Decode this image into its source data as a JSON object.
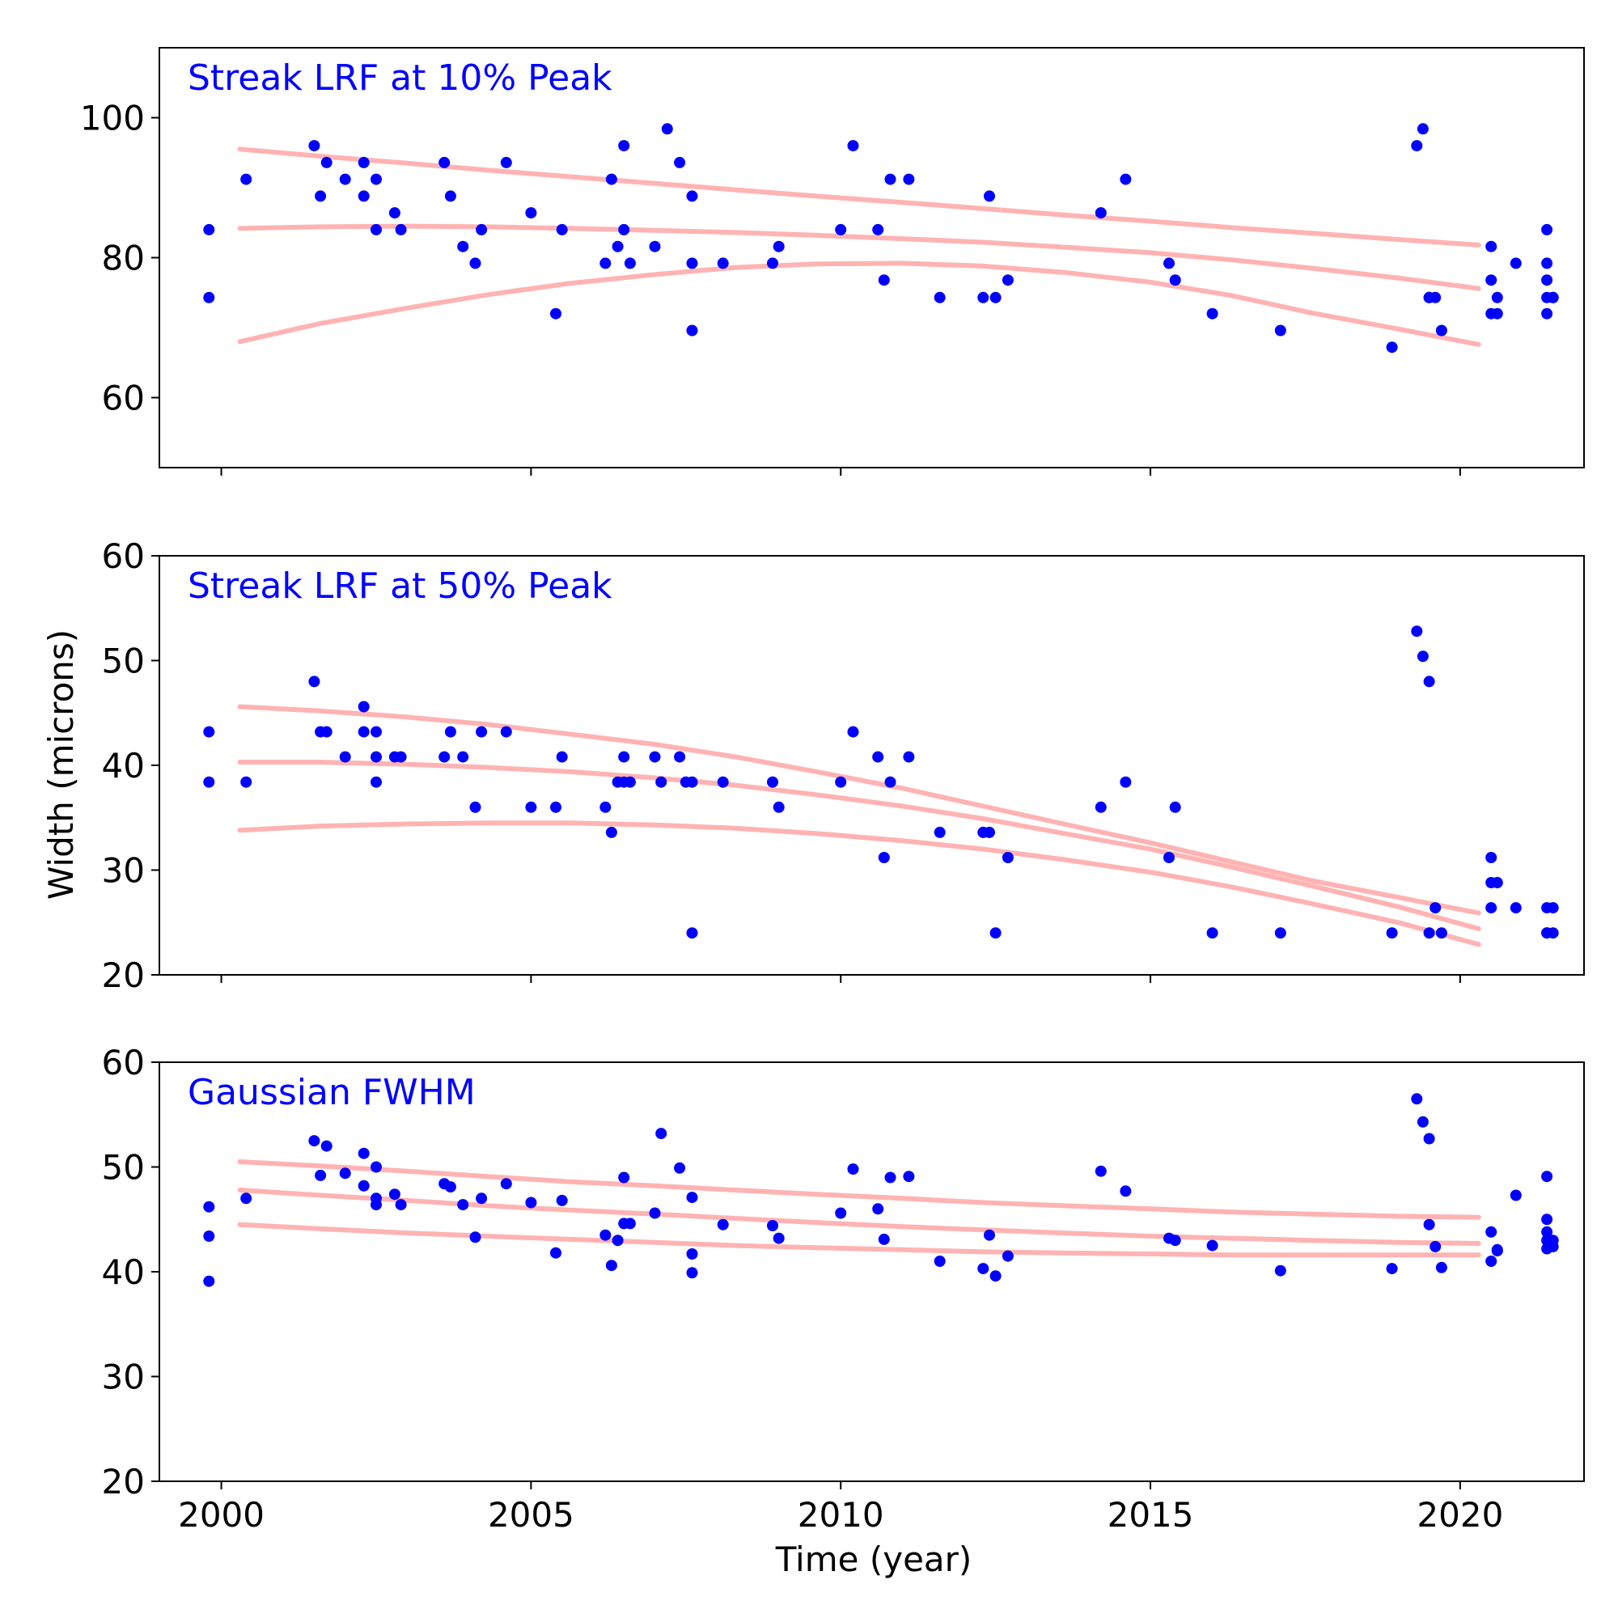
{
  "figure": {
    "ylabel": "Width (microns)",
    "xlabel": "Time (year)"
  },
  "colors": {
    "points": "#0000ff",
    "fit": "#ffb3b3",
    "title": "#0000ff",
    "axis": "#000000"
  },
  "chart_data": [
    {
      "type": "scatter",
      "title": "Streak LRF at 10% Peak",
      "xlim": [
        1999,
        2022
      ],
      "ylim": [
        50,
        110
      ],
      "xticks": [
        2000,
        2005,
        2010,
        2015,
        2020
      ],
      "yticks": [
        60,
        80,
        100
      ],
      "show_xtick_labels": false,
      "grid": false,
      "x": [
        1999.8,
        1999.8,
        2000.4,
        2001.5,
        2001.6,
        2001.7,
        2002.0,
        2002.3,
        2002.3,
        2002.5,
        2002.5,
        2002.8,
        2002.9,
        2003.6,
        2003.7,
        2003.9,
        2004.1,
        2004.2,
        2004.6,
        2005.0,
        2005.4,
        2005.5,
        2006.2,
        2006.3,
        2006.4,
        2006.5,
        2006.5,
        2006.6,
        2007.0,
        2007.2,
        2007.4,
        2007.6,
        2007.6,
        2007.6,
        2008.1,
        2008.9,
        2009.0,
        2010.0,
        2010.2,
        2010.6,
        2010.7,
        2010.8,
        2011.1,
        2011.6,
        2012.3,
        2012.4,
        2012.5,
        2012.7,
        2014.2,
        2014.6,
        2015.3,
        2015.4,
        2016.0,
        2017.1,
        2018.9,
        2019.3,
        2019.4,
        2019.5,
        2019.5,
        2019.6,
        2019.7,
        2020.5,
        2020.5,
        2020.5,
        2020.6,
        2020.6,
        2020.9,
        2021.4,
        2021.4,
        2021.4,
        2021.4,
        2021.4,
        2021.5,
        2021.5
      ],
      "y": [
        84,
        74.3,
        91.2,
        96,
        88.8,
        93.6,
        91.2,
        93.6,
        88.8,
        91.2,
        84,
        86.4,
        84,
        93.6,
        88.8,
        81.6,
        79.2,
        84,
        93.6,
        86.4,
        72,
        84,
        79.2,
        91.2,
        81.6,
        96,
        84,
        79.2,
        81.6,
        98.4,
        93.6,
        88.8,
        79.2,
        69.6,
        79.2,
        79.2,
        81.6,
        84,
        96,
        84,
        76.8,
        91.2,
        91.2,
        74.3,
        74.3,
        88.8,
        74.3,
        76.8,
        86.4,
        91.2,
        79.2,
        76.8,
        72,
        69.6,
        67.2,
        96,
        98.4,
        74.3,
        74.3,
        74.3,
        69.6,
        72,
        81.6,
        76.8,
        74.3,
        72,
        79.2,
        72,
        84,
        79.2,
        76.8,
        74.3,
        74.3,
        74.3
      ],
      "fit_x": [
        2000.3,
        2001.6,
        2003.0,
        2004.3,
        2005.6,
        2007.0,
        2008.3,
        2009.6,
        2011.0,
        2012.3,
        2013.6,
        2015.0,
        2016.3,
        2017.6,
        2019.0,
        2020.3
      ],
      "fit_upper": [
        95.5,
        94.5,
        93.5,
        92.5,
        91.6,
        90.6,
        89.7,
        88.8,
        87.9,
        87.0,
        86.1,
        85.2,
        84.3,
        83.5,
        82.6,
        81.8
      ],
      "fit_center": [
        84.2,
        84.4,
        84.5,
        84.4,
        84.2,
        83.9,
        83.6,
        83.2,
        82.7,
        82.2,
        81.5,
        80.7,
        79.7,
        78.5,
        77.1,
        75.6
      ],
      "fit_lower": [
        68.0,
        70.6,
        72.8,
        74.7,
        76.3,
        77.6,
        78.6,
        79.1,
        79.2,
        78.8,
        77.9,
        76.5,
        74.6,
        72.1,
        69.8,
        67.6
      ]
    },
    {
      "type": "scatter",
      "title": "Streak LRF at 50% Peak",
      "xlim": [
        1999,
        2022
      ],
      "ylim": [
        20,
        60
      ],
      "xticks": [
        2000,
        2005,
        2010,
        2015,
        2020
      ],
      "yticks": [
        20,
        30,
        40,
        50,
        60
      ],
      "show_xtick_labels": false,
      "grid": false,
      "x": [
        1999.8,
        1999.8,
        2000.4,
        2001.5,
        2001.6,
        2001.7,
        2002.0,
        2002.3,
        2002.3,
        2002.5,
        2002.5,
        2002.5,
        2002.8,
        2002.9,
        2003.6,
        2003.9,
        2003.7,
        2004.1,
        2004.2,
        2004.6,
        2005.0,
        2005.4,
        2005.5,
        2006.2,
        2006.3,
        2006.4,
        2006.5,
        2006.5,
        2006.6,
        2007.0,
        2007.1,
        2007.4,
        2007.5,
        2007.6,
        2007.6,
        2008.1,
        2008.9,
        2009.0,
        2010.0,
        2010.2,
        2010.6,
        2010.7,
        2010.8,
        2011.1,
        2011.6,
        2012.3,
        2012.4,
        2012.5,
        2012.7,
        2014.2,
        2014.6,
        2015.3,
        2015.4,
        2016.0,
        2017.1,
        2018.9,
        2019.3,
        2019.4,
        2019.5,
        2019.5,
        2019.6,
        2019.7,
        2020.5,
        2020.5,
        2020.5,
        2020.6,
        2020.9,
        2021.4,
        2021.4,
        2021.4,
        2021.5,
        2021.5
      ],
      "y": [
        43.2,
        38.4,
        38.4,
        48.0,
        43.2,
        43.2,
        40.8,
        45.6,
        43.2,
        43.2,
        40.8,
        38.4,
        40.8,
        40.8,
        40.8,
        40.8,
        43.2,
        36.0,
        43.2,
        43.2,
        36.0,
        36.0,
        40.8,
        36.0,
        33.6,
        38.4,
        40.8,
        38.4,
        38.4,
        40.8,
        38.4,
        40.8,
        38.4,
        38.4,
        24.0,
        38.4,
        38.4,
        36.0,
        38.4,
        43.2,
        40.8,
        31.2,
        38.4,
        40.8,
        33.6,
        33.6,
        33.6,
        24.0,
        31.2,
        36.0,
        38.4,
        31.2,
        36.0,
        24.0,
        24.0,
        24.0,
        52.8,
        50.4,
        48.0,
        24.0,
        26.4,
        24.0,
        28.8,
        31.2,
        26.4,
        28.8,
        26.4,
        24.0,
        26.4,
        24.0,
        26.4,
        24.0
      ],
      "fit_x": [
        2000.3,
        2001.6,
        2003.0,
        2004.3,
        2005.6,
        2007.0,
        2008.3,
        2009.6,
        2011.0,
        2012.3,
        2013.6,
        2015.0,
        2016.3,
        2017.6,
        2019.0,
        2020.3
      ],
      "fit_upper": [
        45.6,
        45.2,
        44.6,
        43.9,
        43.0,
        42.0,
        40.8,
        39.4,
        37.8,
        36.1,
        34.4,
        32.6,
        30.8,
        29.0,
        27.4,
        25.9
      ],
      "fit_center": [
        40.3,
        40.3,
        40.1,
        39.8,
        39.4,
        38.8,
        38.1,
        37.2,
        36.1,
        34.9,
        33.5,
        32.0,
        30.3,
        28.5,
        26.5,
        24.4
      ],
      "fit_lower": [
        33.8,
        34.2,
        34.4,
        34.5,
        34.5,
        34.3,
        34.0,
        33.5,
        32.8,
        32.0,
        31.0,
        29.8,
        28.4,
        26.8,
        25.0,
        22.9
      ]
    },
    {
      "type": "scatter",
      "title": "Gaussian FWHM",
      "xlim": [
        1999,
        2022
      ],
      "ylim": [
        20,
        60
      ],
      "xticks": [
        2000,
        2005,
        2010,
        2015,
        2020
      ],
      "yticks": [
        20,
        30,
        40,
        50,
        60
      ],
      "xtick_labels": [
        "2000",
        "2005",
        "2010",
        "2015",
        "2020"
      ],
      "show_xtick_labels": true,
      "grid": false,
      "x": [
        1999.8,
        1999.8,
        1999.8,
        2000.4,
        2001.5,
        2001.6,
        2001.7,
        2002.0,
        2002.3,
        2002.3,
        2002.5,
        2002.5,
        2002.5,
        2002.8,
        2002.9,
        2003.6,
        2003.7,
        2003.9,
        2004.1,
        2004.2,
        2004.6,
        2005.0,
        2005.4,
        2005.5,
        2006.2,
        2006.3,
        2006.4,
        2006.5,
        2006.5,
        2006.6,
        2007.0,
        2007.1,
        2007.4,
        2007.6,
        2007.6,
        2007.6,
        2008.1,
        2008.9,
        2009.0,
        2010.0,
        2010.2,
        2010.6,
        2010.7,
        2010.8,
        2011.1,
        2011.6,
        2012.3,
        2012.4,
        2012.5,
        2012.7,
        2014.2,
        2014.6,
        2015.3,
        2015.4,
        2016.0,
        2017.1,
        2018.9,
        2019.3,
        2019.4,
        2019.5,
        2019.5,
        2019.6,
        2019.7,
        2020.5,
        2020.5,
        2020.6,
        2020.6,
        2020.9,
        2021.4,
        2021.4,
        2021.4,
        2021.4,
        2021.4,
        2021.5,
        2021.5
      ],
      "y": [
        46.2,
        43.4,
        39.1,
        47.0,
        52.5,
        49.2,
        52.0,
        49.4,
        51.3,
        48.2,
        50.0,
        47.0,
        46.4,
        47.4,
        46.4,
        48.4,
        48.1,
        46.4,
        43.3,
        47.0,
        48.4,
        46.6,
        41.8,
        46.8,
        43.5,
        40.6,
        43.0,
        49.0,
        44.6,
        44.6,
        45.6,
        53.2,
        49.9,
        47.1,
        41.7,
        39.9,
        44.5,
        44.4,
        43.2,
        45.6,
        49.8,
        46.0,
        43.1,
        49.0,
        49.1,
        41.0,
        40.3,
        43.5,
        39.6,
        41.5,
        49.6,
        47.7,
        43.2,
        43.0,
        42.5,
        40.1,
        40.3,
        56.5,
        54.3,
        52.7,
        44.5,
        42.4,
        40.4,
        43.8,
        41.0,
        42.1,
        42.0,
        47.3,
        49.1,
        45.0,
        43.8,
        43.0,
        42.2,
        43.0,
        42.4
      ],
      "fit_x": [
        2000.3,
        2001.6,
        2003.0,
        2004.3,
        2005.6,
        2007.0,
        2008.3,
        2009.6,
        2011.0,
        2012.3,
        2013.6,
        2015.0,
        2016.3,
        2017.6,
        2019.0,
        2020.3
      ],
      "fit_upper": [
        50.5,
        50.1,
        49.6,
        49.1,
        48.6,
        48.2,
        47.8,
        47.4,
        47.0,
        46.6,
        46.3,
        46.0,
        45.7,
        45.5,
        45.3,
        45.2
      ],
      "fit_center": [
        47.8,
        47.3,
        46.8,
        46.3,
        45.9,
        45.5,
        45.1,
        44.7,
        44.3,
        44.0,
        43.7,
        43.4,
        43.2,
        43.0,
        42.8,
        42.7
      ],
      "fit_lower": [
        44.5,
        44.1,
        43.7,
        43.4,
        43.1,
        42.8,
        42.5,
        42.3,
        42.1,
        41.9,
        41.8,
        41.7,
        41.6,
        41.6,
        41.6,
        41.6
      ]
    }
  ]
}
